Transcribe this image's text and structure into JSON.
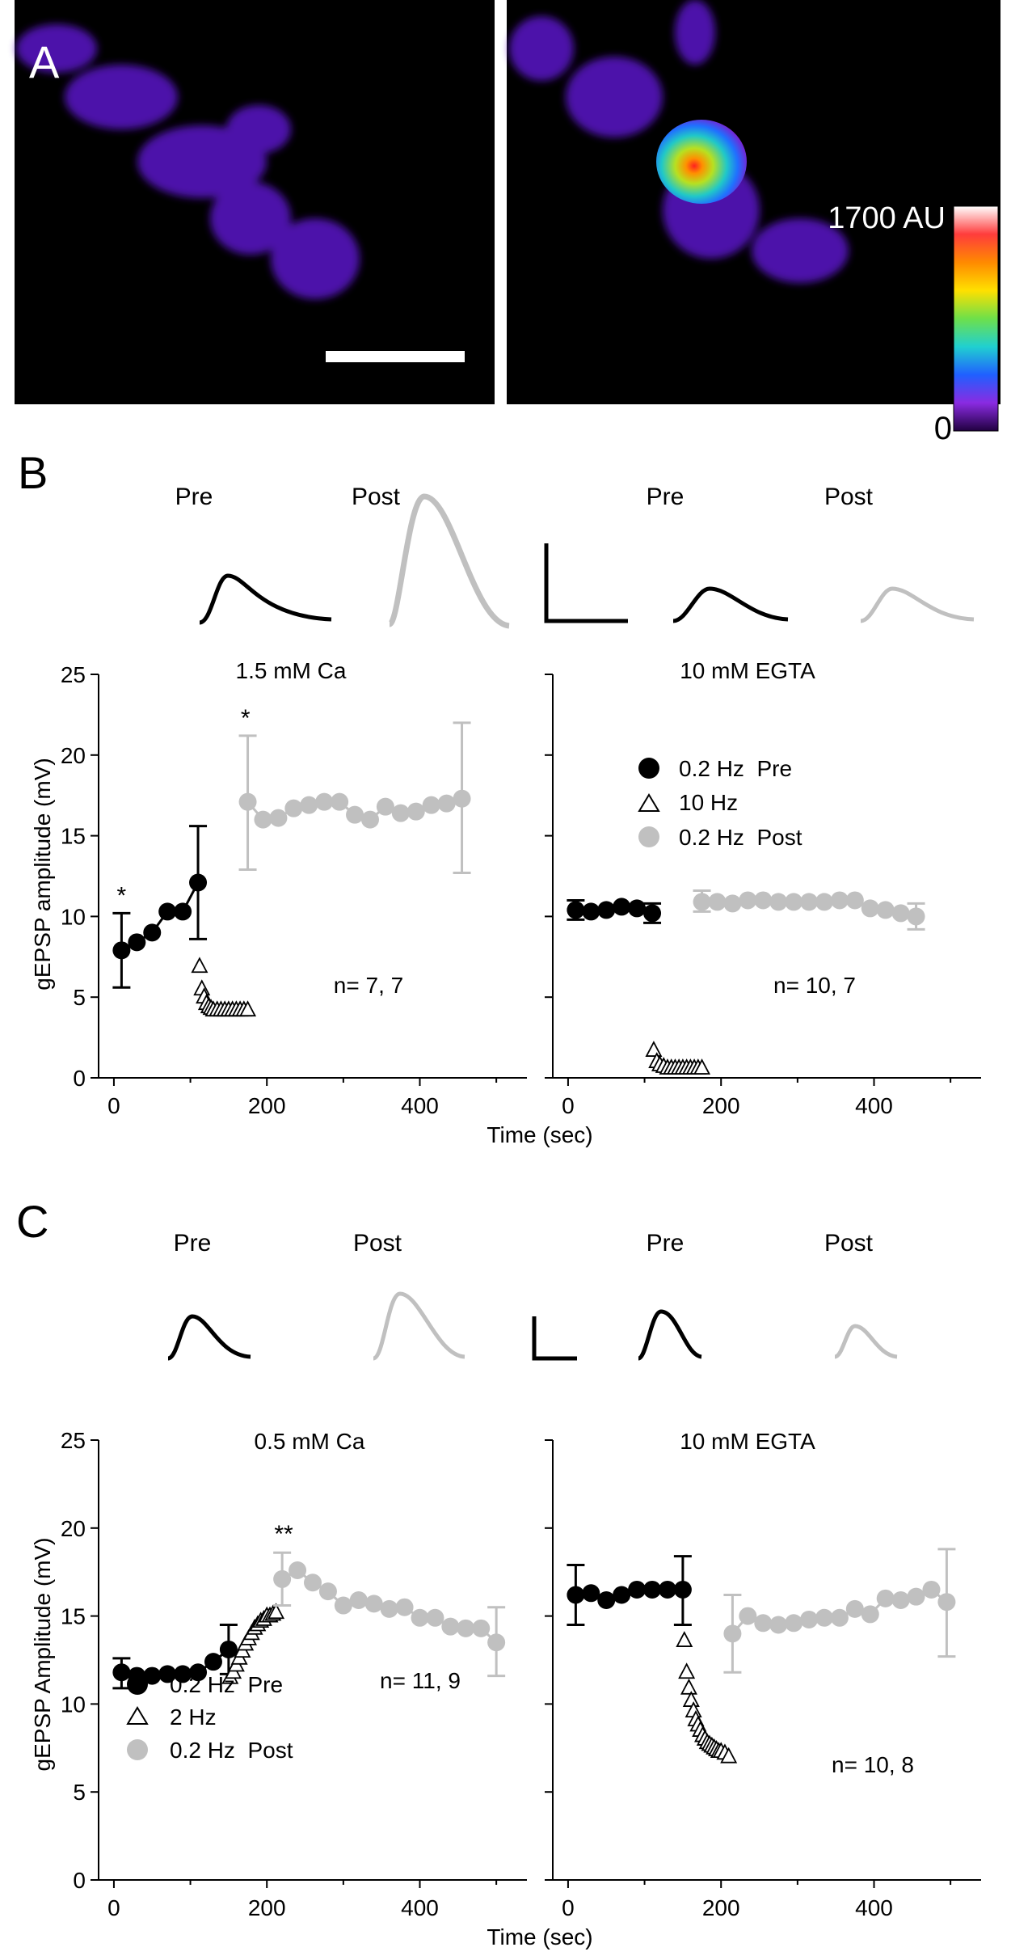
{
  "colors": {
    "pre": "#000000",
    "post": "#c0c0c0",
    "train": "#000000",
    "bg_image": "#000000"
  },
  "panel_a": {
    "letter": "A",
    "colorbar_max": "1700 AU",
    "colorbar_min": "0",
    "colorbar_stops": [
      "#ffffff",
      "#ff3c3c",
      "#ff8a00",
      "#ffe000",
      "#6ee04a",
      "#20d0d0",
      "#2060ff",
      "#8a2be2",
      "#200040"
    ]
  },
  "panel_b": {
    "letter": "B",
    "traces": {
      "pre1": "Pre",
      "post1": "Post",
      "pre2": "Pre",
      "post2": "Post"
    },
    "xlabel": "Time (sec)",
    "legend": [
      "0.2 Hz  Pre",
      "10 Hz",
      "0.2 Hz  Post"
    ],
    "left": {
      "title": "1.5 mM Ca",
      "n_label": "n= 7, 7",
      "ylabel": "gEPSP amplitude (mV)",
      "ylim": [
        0,
        25
      ],
      "xlim": [
        -20,
        540
      ],
      "yticks": [
        "0",
        "5",
        "10",
        "15",
        "20",
        "25"
      ],
      "xticks": [
        "0",
        "200",
        "400"
      ],
      "stars": [
        {
          "text": "*",
          "x": 10,
          "y": 10.8
        },
        {
          "text": "*",
          "x": 172,
          "y": 21.8
        }
      ],
      "chart_data": {
        "type": "scatter",
        "series": [
          {
            "name": "0.2 Hz  Pre",
            "marker": "circle",
            "color": "#000000",
            "connected": true,
            "x": [
              10,
              30,
              50,
              70,
              90,
              110
            ],
            "y": [
              7.9,
              8.4,
              9.0,
              10.3,
              10.3,
              12.1
            ],
            "errors": [
              {
                "x": 10,
                "lo": 5.6,
                "hi": 10.2
              },
              {
                "x": 110,
                "lo": 8.6,
                "hi": 15.6
              }
            ]
          },
          {
            "name": "10 Hz",
            "marker": "triangle",
            "color": "#000000",
            "connected": false,
            "x": [
              112,
              115,
              118,
              121,
              124,
              127,
              130,
              135,
              140,
              145,
              150,
              155,
              160,
              165,
              170,
              175
            ],
            "y": [
              6.9,
              5.5,
              5.0,
              4.6,
              4.4,
              4.3,
              4.2,
              4.2,
              4.2,
              4.2,
              4.2,
              4.2,
              4.2,
              4.2,
              4.2,
              4.2
            ]
          },
          {
            "name": "0.2 Hz  Post",
            "marker": "circle",
            "color": "#c0c0c0",
            "connected": true,
            "x": [
              175,
              195,
              215,
              235,
              255,
              275,
              295,
              315,
              335,
              355,
              375,
              395,
              415,
              435,
              455
            ],
            "y": [
              17.1,
              16.0,
              16.1,
              16.7,
              16.9,
              17.1,
              17.1,
              16.3,
              16.0,
              16.8,
              16.4,
              16.5,
              16.9,
              17.0,
              17.3
            ],
            "errors": [
              {
                "x": 175,
                "lo": 12.9,
                "hi": 21.2
              },
              {
                "x": 455,
                "lo": 12.7,
                "hi": 22.0
              }
            ]
          }
        ]
      }
    },
    "right": {
      "title": "10 mM EGTA",
      "n_label": "n= 10, 7",
      "ylim": [
        0,
        25
      ],
      "xlim": [
        -20,
        540
      ],
      "xticks": [
        "0",
        "200",
        "400"
      ],
      "chart_data": {
        "type": "scatter",
        "series": [
          {
            "name": "0.2 Hz  Pre",
            "marker": "circle",
            "color": "#000000",
            "connected": true,
            "x": [
              10,
              30,
              50,
              70,
              90,
              110
            ],
            "y": [
              10.4,
              10.3,
              10.4,
              10.6,
              10.5,
              10.2
            ],
            "errors": [
              {
                "x": 10,
                "lo": 9.8,
                "hi": 11.0
              },
              {
                "x": 110,
                "lo": 9.6,
                "hi": 10.8
              }
            ]
          },
          {
            "name": "10 Hz",
            "marker": "triangle",
            "color": "#000000",
            "connected": false,
            "x": [
              112,
              116,
              120,
              125,
              130,
              135,
              140,
              145,
              150,
              155,
              160,
              165,
              170,
              175
            ],
            "y": [
              1.7,
              1.0,
              0.8,
              0.7,
              0.6,
              0.6,
              0.6,
              0.6,
              0.6,
              0.6,
              0.6,
              0.6,
              0.6,
              0.6
            ]
          },
          {
            "name": "0.2 Hz  Post",
            "marker": "circle",
            "color": "#c0c0c0",
            "connected": true,
            "x": [
              175,
              195,
              215,
              235,
              255,
              275,
              295,
              315,
              335,
              355,
              375,
              395,
              415,
              435,
              455
            ],
            "y": [
              10.9,
              10.9,
              10.8,
              11.0,
              11.0,
              10.9,
              10.9,
              10.9,
              10.9,
              11.0,
              11.0,
              10.5,
              10.4,
              10.2,
              10.0
            ],
            "errors": [
              {
                "x": 175,
                "lo": 10.3,
                "hi": 11.6
              },
              {
                "x": 455,
                "lo": 9.2,
                "hi": 10.8
              }
            ]
          }
        ]
      }
    }
  },
  "panel_c": {
    "letter": "C",
    "traces": {
      "pre1": "Pre",
      "post1": "Post",
      "pre2": "Pre",
      "post2": "Post"
    },
    "xlabel": "Time (sec)",
    "legend": [
      "0.2 Hz  Pre",
      "2 Hz",
      "0.2 Hz  Post"
    ],
    "left": {
      "title": "0.5 mM Ca",
      "n_label": "n= 11, 9",
      "ylabel": "gEPSP Amplitude (mV)",
      "ylim": [
        0,
        25
      ],
      "xlim": [
        -20,
        540
      ],
      "yticks": [
        "0",
        "5",
        "10",
        "15",
        "20",
        "25"
      ],
      "xticks": [
        "0",
        "200",
        "400"
      ],
      "stars": [
        {
          "text": "**",
          "x": 222,
          "y": 19.2
        }
      ],
      "chart_data": {
        "type": "scatter",
        "series": [
          {
            "name": "0.2 Hz  Pre",
            "marker": "circle",
            "color": "#000000",
            "connected": true,
            "x": [
              10,
              30,
              50,
              70,
              90,
              110,
              130,
              150
            ],
            "y": [
              11.8,
              11.6,
              11.6,
              11.7,
              11.7,
              11.8,
              12.4,
              13.1
            ],
            "errors": [
              {
                "x": 10,
                "lo": 10.9,
                "hi": 12.6
              },
              {
                "x": 150,
                "lo": 11.7,
                "hi": 14.5
              }
            ]
          },
          {
            "name": "2 Hz",
            "marker": "triangle",
            "color": "#000000",
            "connected": false,
            "x": [
              152,
              156,
              160,
              164,
              168,
              172,
              176,
              180,
              184,
              188,
              192,
              196,
              200,
              204,
              208,
              212
            ],
            "y": [
              11.5,
              11.8,
              12.2,
              12.6,
              13.0,
              13.4,
              13.7,
              14.0,
              14.3,
              14.5,
              14.7,
              14.8,
              15.0,
              15.0,
              15.1,
              15.2
            ]
          },
          {
            "name": "0.2 Hz  Post",
            "marker": "circle",
            "color": "#c0c0c0",
            "connected": true,
            "x": [
              220,
              240,
              260,
              280,
              300,
              320,
              340,
              360,
              380,
              400,
              420,
              440,
              460,
              480,
              500
            ],
            "y": [
              17.1,
              17.6,
              16.9,
              16.4,
              15.6,
              15.9,
              15.7,
              15.4,
              15.5,
              14.9,
              14.9,
              14.4,
              14.3,
              14.3,
              13.5
            ],
            "errors": [
              {
                "x": 220,
                "lo": 15.6,
                "hi": 18.6
              },
              {
                "x": 500,
                "lo": 11.6,
                "hi": 15.5
              }
            ]
          }
        ]
      }
    },
    "right": {
      "title": "10 mM EGTA",
      "n_label": "n= 10, 8",
      "ylim": [
        0,
        25
      ],
      "xlim": [
        -20,
        540
      ],
      "xticks": [
        "0",
        "200",
        "400"
      ],
      "chart_data": {
        "type": "scatter",
        "series": [
          {
            "name": "0.2 Hz  Pre",
            "marker": "circle",
            "color": "#000000",
            "connected": true,
            "x": [
              10,
              30,
              50,
              70,
              90,
              110,
              130,
              150
            ],
            "y": [
              16.2,
              16.3,
              15.9,
              16.2,
              16.5,
              16.5,
              16.5,
              16.5
            ],
            "errors": [
              {
                "x": 10,
                "lo": 14.5,
                "hi": 17.9
              },
              {
                "x": 150,
                "lo": 14.5,
                "hi": 18.4
              }
            ]
          },
          {
            "name": "2 Hz",
            "marker": "triangle",
            "color": "#000000",
            "connected": false,
            "x": [
              152,
              155,
              158,
              161,
              164,
              167,
              170,
              173,
              176,
              179,
              182,
              185,
              188,
              191,
              194,
              197,
              200,
              205,
              210
            ],
            "y": [
              13.6,
              11.8,
              10.9,
              10.2,
              9.6,
              9.1,
              8.8,
              8.5,
              8.2,
              8.0,
              7.8,
              7.7,
              7.6,
              7.5,
              7.4,
              7.3,
              7.3,
              7.2,
              7.0
            ]
          },
          {
            "name": "0.2 Hz  Post",
            "marker": "circle",
            "color": "#c0c0c0",
            "connected": true,
            "x": [
              215,
              235,
              255,
              275,
              295,
              315,
              335,
              355,
              375,
              395,
              415,
              435,
              455,
              475,
              495
            ],
            "y": [
              14.0,
              15.0,
              14.6,
              14.5,
              14.6,
              14.8,
              14.9,
              14.9,
              15.4,
              15.1,
              16.0,
              15.9,
              16.1,
              16.5,
              15.8
            ],
            "errors": [
              {
                "x": 215,
                "lo": 11.8,
                "hi": 16.2
              },
              {
                "x": 495,
                "lo": 12.7,
                "hi": 18.8
              }
            ]
          }
        ]
      }
    }
  }
}
